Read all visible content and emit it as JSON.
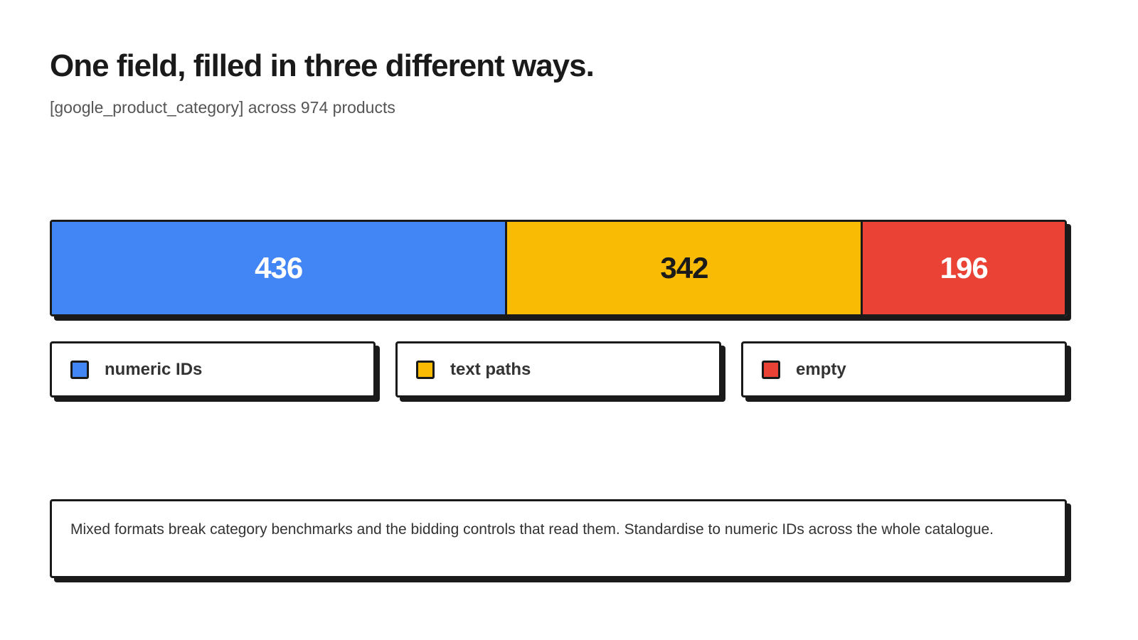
{
  "header": {
    "title": "One field, filled in three different ways.",
    "subtitle": "[google_product_category] across 974 products"
  },
  "chart_data": {
    "type": "bar",
    "orientation": "horizontal-stacked",
    "categories": [
      "numeric IDs",
      "text paths",
      "empty"
    ],
    "values": [
      436,
      342,
      196
    ],
    "total": 974,
    "colors": [
      "#4285F4",
      "#FABB05",
      "#EA4335"
    ],
    "label_colors": [
      "#ffffff",
      "#1a1a1a",
      "#ffffff"
    ],
    "legend_position": "bottom"
  },
  "note": {
    "text": "Mixed formats break category benchmarks and the bidding controls that read them. Standardise to numeric IDs across the whole catalogue."
  }
}
